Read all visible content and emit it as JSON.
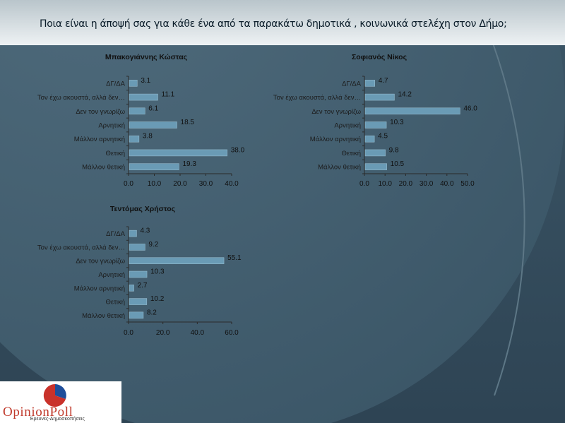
{
  "title": "Ποια είναι η άποψή σας για κάθε ένα από τα παρακάτω δημοτικά , κοινωνικά στελέχη στον Δήμο;",
  "logo": {
    "name": "OpinionPoll",
    "subtitle": "Έρευνες-Δημοσκοπήσεις"
  },
  "colors": {
    "bar": "#6a9bb5",
    "text": "#1c1c1c",
    "axis": "#2a2a2a"
  },
  "chart_data": [
    {
      "type": "bar",
      "orientation": "horizontal",
      "title": "Μπακογιάννης Κώστας",
      "categories": [
        "ΔΓ/ΔΑ",
        "Τον έχω ακουστά, αλλά δεν…",
        "Δεν τον γνωρίζω",
        "Αρνητική",
        "Μάλλον αρνητική",
        "Θετική",
        "Μάλλον θετική"
      ],
      "values": [
        3.1,
        11.1,
        6.1,
        18.5,
        3.8,
        38.0,
        19.3
      ],
      "labels": [
        "3.1",
        "11.1",
        "6.1",
        "18.5",
        "3.8",
        "38.0",
        "19.3"
      ],
      "xlim": [
        0,
        40
      ],
      "ticks": [
        "0.0",
        "10.0",
        "20.0",
        "30.0",
        "40.0"
      ]
    },
    {
      "type": "bar",
      "orientation": "horizontal",
      "title": "Σοφιανός Νίκος",
      "categories": [
        "ΔΓ/ΔΑ",
        "Τον έχω ακουστά, αλλά δεν…",
        "Δεν τον γνωρίζω",
        "Αρνητική",
        "Μάλλον αρνητική",
        "Θετική",
        "Μάλλον θετική"
      ],
      "values": [
        4.7,
        14.2,
        46.0,
        10.3,
        4.5,
        9.8,
        10.5
      ],
      "labels": [
        "4.7",
        "14.2",
        "46.0",
        "10.3",
        "4.5",
        "9.8",
        "10.5"
      ],
      "xlim": [
        0,
        50
      ],
      "ticks": [
        "0.0",
        "10.0",
        "20.0",
        "30.0",
        "40.0",
        "50.0"
      ]
    },
    {
      "type": "bar",
      "orientation": "horizontal",
      "title": "Τεντόμας Χρήστος",
      "categories": [
        "ΔΓ/ΔΑ",
        "Τον έχω ακουστά, αλλά δεν…",
        "Δεν τον γνωρίζω",
        "Αρνητική",
        "Μάλλον αρνητική",
        "Θετική",
        "Μάλλον θετική"
      ],
      "values": [
        4.3,
        9.2,
        55.1,
        10.3,
        2.7,
        10.2,
        8.2
      ],
      "labels": [
        "4.3",
        "9.2",
        "55.1",
        "10.3",
        "2.7",
        "10.2",
        "8.2"
      ],
      "xlim": [
        0,
        60
      ],
      "ticks": [
        "0.0",
        "20.0",
        "40.0",
        "60.0"
      ]
    }
  ]
}
